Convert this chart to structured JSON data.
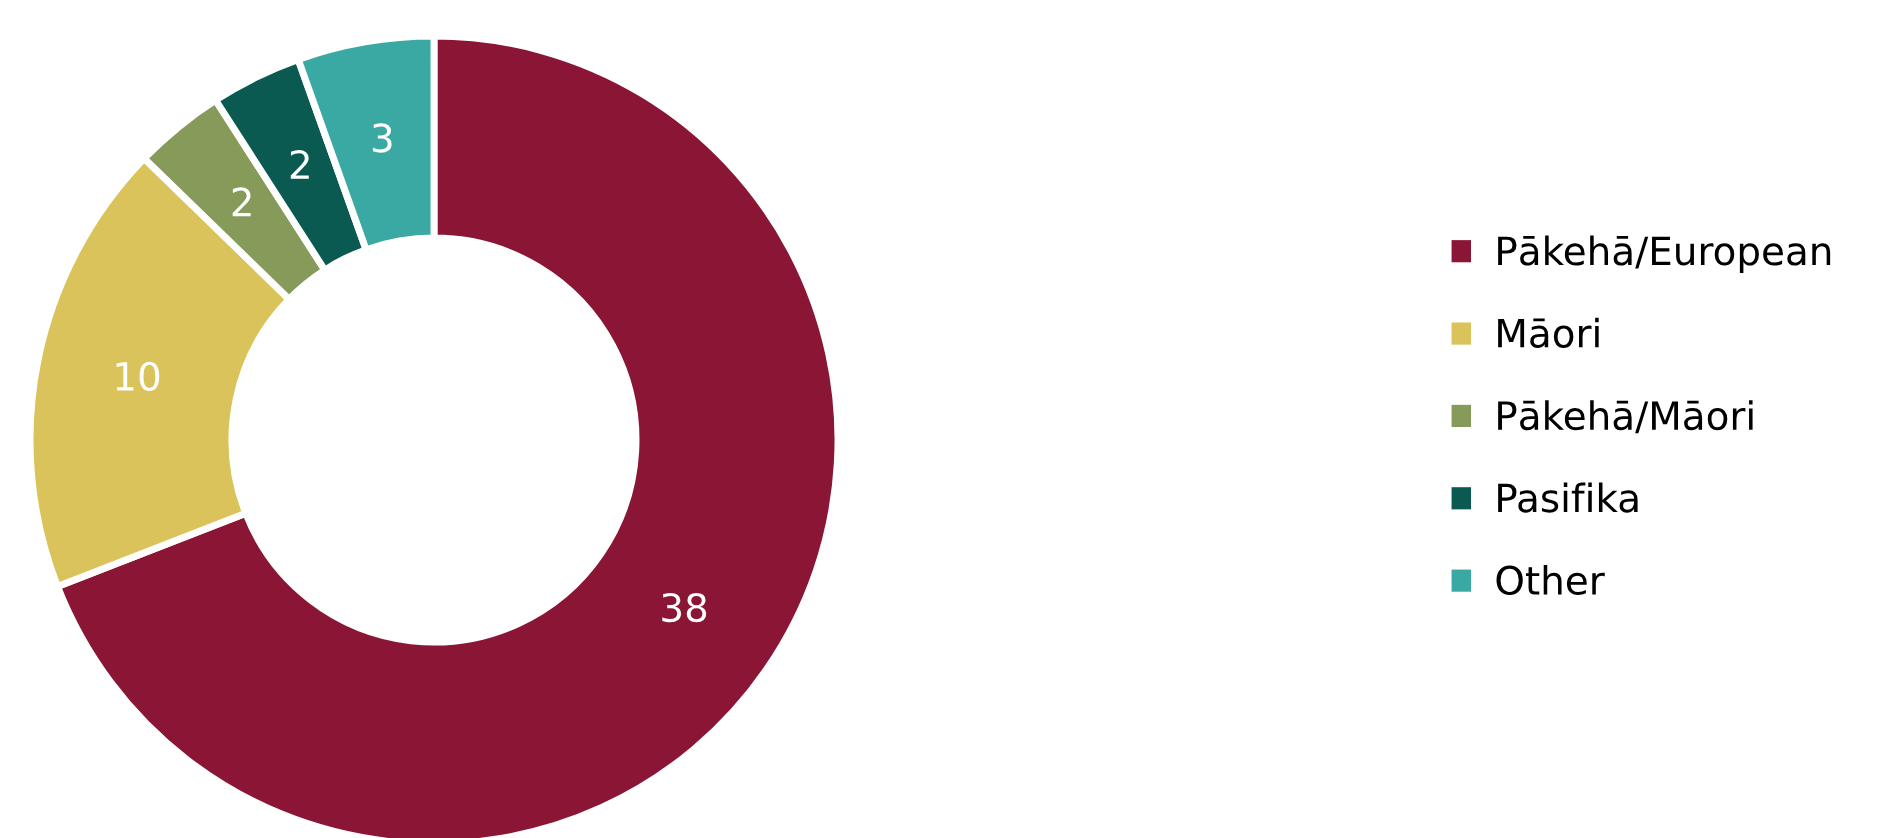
{
  "chart_data": {
    "type": "donut",
    "categories": [
      "Pākehā/European",
      "Māori",
      "Pākehā/Māori",
      "Pasifika",
      "Other"
    ],
    "values": [
      38,
      10,
      2,
      2,
      3
    ],
    "colors": [
      "#8b1535",
      "#d9c35a",
      "#869a5a",
      "#0b5a52",
      "#3aa9a4"
    ],
    "data_labels": true,
    "legend": "right"
  }
}
